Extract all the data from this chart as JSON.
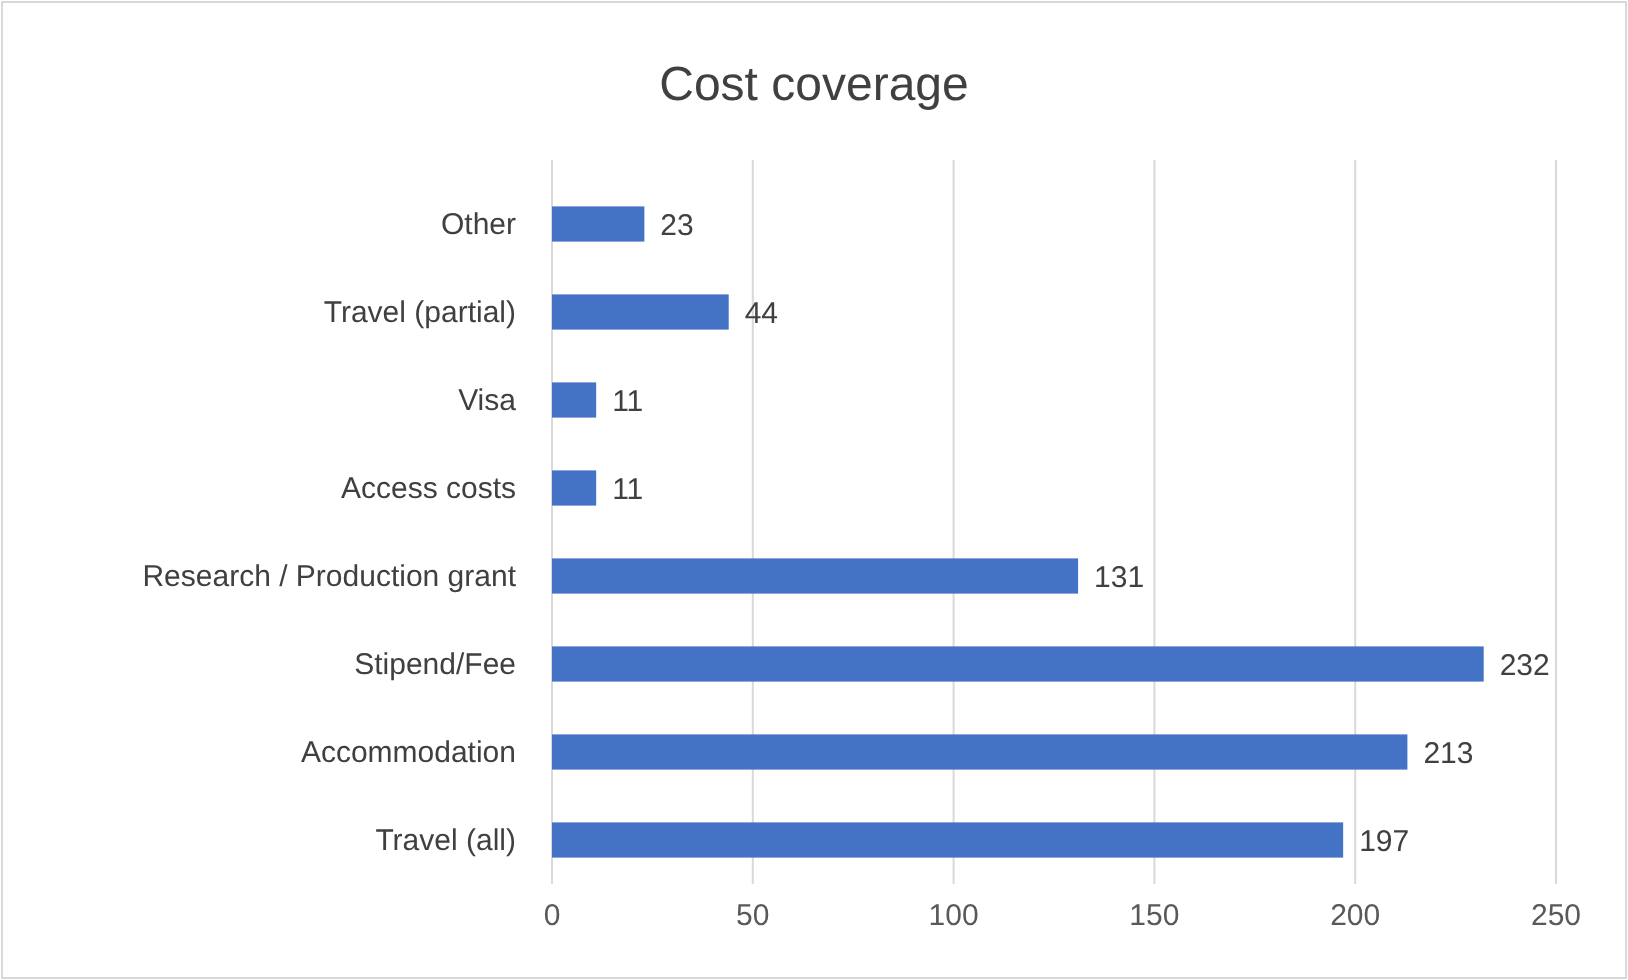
{
  "chart_data": {
    "type": "bar",
    "title": "Cost coverage",
    "orientation": "horizontal",
    "categories": [
      "Other",
      "Travel (partial)",
      "Visa",
      "Access costs",
      "Research / Production grant",
      "Stipend/Fee",
      "Accommodation",
      "Travel (all)"
    ],
    "values": [
      23,
      44,
      11,
      11,
      131,
      232,
      213,
      197
    ],
    "color": "#4472c4",
    "xlim": [
      0,
      250
    ],
    "xticks": [
      0,
      50,
      100,
      150,
      200,
      250
    ],
    "grid": "x",
    "data_labels": true
  }
}
